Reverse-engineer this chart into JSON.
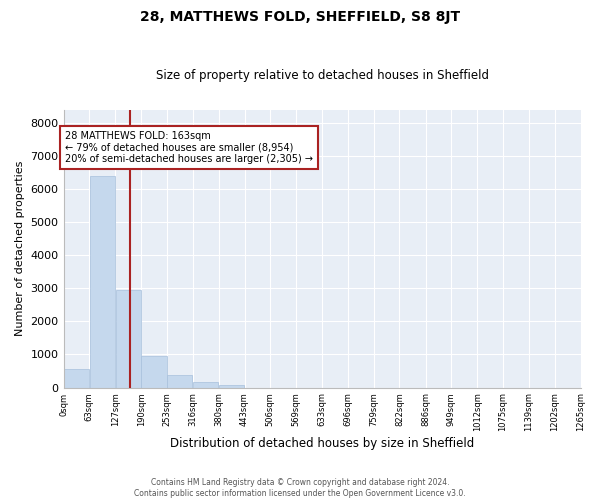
{
  "title": "28, MATTHEWS FOLD, SHEFFIELD, S8 8JT",
  "subtitle": "Size of property relative to detached houses in Sheffield",
  "xlabel": "Distribution of detached houses by size in Sheffield",
  "ylabel": "Number of detached properties",
  "footer1": "Contains HM Land Registry data © Crown copyright and database right 2024.",
  "footer2": "Contains public sector information licensed under the Open Government Licence v3.0.",
  "annotation_line1": "28 MATTHEWS FOLD: 163sqm",
  "annotation_line2": "← 79% of detached houses are smaller (8,954)",
  "annotation_line3": "20% of semi-detached houses are larger (2,305) →",
  "bar_color": "#c5d8ed",
  "bar_edge_color": "#a8c0dc",
  "vline_color": "#aa2222",
  "vline_x": 163,
  "bg_color": "#e8eef6",
  "grid_color": "#ffffff",
  "tick_labels": [
    "0sqm",
    "63sqm",
    "127sqm",
    "190sqm",
    "253sqm",
    "316sqm",
    "380sqm",
    "443sqm",
    "506sqm",
    "569sqm",
    "633sqm",
    "696sqm",
    "759sqm",
    "822sqm",
    "886sqm",
    "949sqm",
    "1012sqm",
    "1075sqm",
    "1139sqm",
    "1202sqm",
    "1265sqm"
  ],
  "bin_edges": [
    0,
    63,
    127,
    190,
    253,
    316,
    380,
    443,
    506,
    569,
    633,
    696,
    759,
    822,
    886,
    949,
    1012,
    1075,
    1139,
    1202,
    1265
  ],
  "bar_heights": [
    550,
    6380,
    2950,
    960,
    370,
    155,
    75,
    0,
    0,
    0,
    0,
    0,
    0,
    0,
    0,
    0,
    0,
    0,
    0,
    0
  ],
  "ylim": [
    0,
    8400
  ],
  "yticks": [
    0,
    1000,
    2000,
    3000,
    4000,
    5000,
    6000,
    7000,
    8000
  ]
}
